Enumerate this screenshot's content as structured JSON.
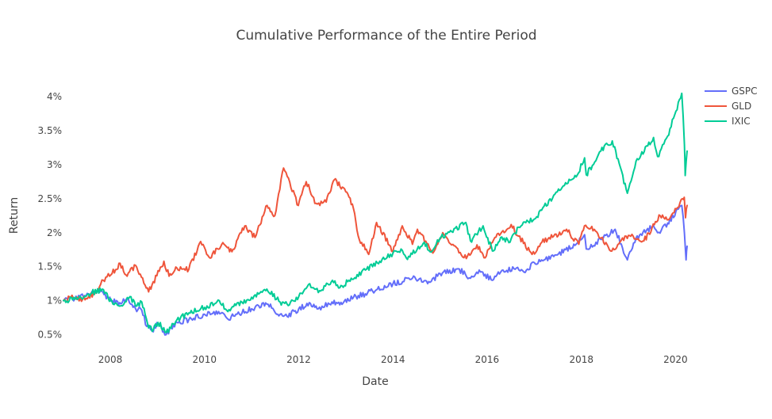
{
  "chart_data": {
    "type": "line",
    "title": "Cumulative Performance of the Entire Period",
    "xlabel": "Date",
    "ylabel": "Return",
    "xlim": [
      "2007-01-03",
      "2020-03-31"
    ],
    "ylim": [
      0.32,
      4.35
    ],
    "x_ticks": [
      "2008",
      "2010",
      "2012",
      "2014",
      "2016",
      "2018",
      "2020"
    ],
    "y_ticks": [
      {
        "value": 0.5,
        "label": "0.5%"
      },
      {
        "value": 1.0,
        "label": "1%"
      },
      {
        "value": 1.5,
        "label": "1.5%"
      },
      {
        "value": 2.0,
        "label": "2%"
      },
      {
        "value": 2.5,
        "label": "2.5%"
      },
      {
        "value": 3.0,
        "label": "3%"
      },
      {
        "value": 3.5,
        "label": "3.5%"
      },
      {
        "value": 4.0,
        "label": "4%"
      }
    ],
    "grid": false,
    "legend_position": "top-right",
    "series": [
      {
        "name": "GSPC",
        "color": "#636efa",
        "points": [
          [
            "2007-01-03",
            1.0
          ],
          [
            "2007-04-01",
            1.03
          ],
          [
            "2007-07-15",
            1.1
          ],
          [
            "2007-10-09",
            1.12
          ],
          [
            "2008-01-15",
            1.0
          ],
          [
            "2008-03-15",
            0.97
          ],
          [
            "2008-05-20",
            1.02
          ],
          [
            "2008-07-15",
            0.88
          ],
          [
            "2008-09-01",
            0.86
          ],
          [
            "2008-10-10",
            0.62
          ],
          [
            "2008-11-20",
            0.56
          ],
          [
            "2009-01-05",
            0.66
          ],
          [
            "2009-03-09",
            0.5
          ],
          [
            "2009-06-01",
            0.68
          ],
          [
            "2009-09-01",
            0.72
          ],
          [
            "2010-01-01",
            0.8
          ],
          [
            "2010-04-20",
            0.84
          ],
          [
            "2010-07-01",
            0.73
          ],
          [
            "2010-09-01",
            0.8
          ],
          [
            "2011-01-01",
            0.88
          ],
          [
            "2011-04-29",
            0.95
          ],
          [
            "2011-08-10",
            0.8
          ],
          [
            "2011-10-03",
            0.77
          ],
          [
            "2012-01-01",
            0.88
          ],
          [
            "2012-04-01",
            0.96
          ],
          [
            "2012-06-01",
            0.88
          ],
          [
            "2012-09-15",
            0.98
          ],
          [
            "2012-11-15",
            0.94
          ],
          [
            "2013-01-15",
            1.03
          ],
          [
            "2013-06-01",
            1.1
          ],
          [
            "2014-01-01",
            1.25
          ],
          [
            "2014-06-01",
            1.33
          ],
          [
            "2014-10-15",
            1.27
          ],
          [
            "2015-01-01",
            1.4
          ],
          [
            "2015-05-21",
            1.47
          ],
          [
            "2015-08-25",
            1.33
          ],
          [
            "2015-11-01",
            1.45
          ],
          [
            "2016-02-11",
            1.3
          ],
          [
            "2016-04-15",
            1.42
          ],
          [
            "2016-08-15",
            1.48
          ],
          [
            "2016-11-01",
            1.45
          ],
          [
            "2017-01-01",
            1.56
          ],
          [
            "2017-06-01",
            1.65
          ],
          [
            "2017-12-01",
            1.85
          ],
          [
            "2018-01-26",
            1.97
          ],
          [
            "2018-02-08",
            1.76
          ],
          [
            "2018-06-01",
            1.9
          ],
          [
            "2018-09-20",
            2.05
          ],
          [
            "2018-12-24",
            1.6
          ],
          [
            "2019-03-01",
            1.92
          ],
          [
            "2019-07-15",
            2.1
          ],
          [
            "2019-08-15",
            2.0
          ],
          [
            "2019-11-01",
            2.14
          ],
          [
            "2020-02-19",
            2.4
          ],
          [
            "2020-03-10",
            2.0
          ],
          [
            "2020-03-23",
            1.6
          ],
          [
            "2020-03-31",
            1.8
          ]
        ]
      },
      {
        "name": "GLD",
        "color": "#ef553b",
        "points": [
          [
            "2007-01-03",
            1.0
          ],
          [
            "2007-03-01",
            1.05
          ],
          [
            "2007-06-01",
            1.02
          ],
          [
            "2007-09-01",
            1.1
          ],
          [
            "2007-11-07",
            1.3
          ],
          [
            "2008-01-15",
            1.4
          ],
          [
            "2008-03-17",
            1.55
          ],
          [
            "2008-05-01",
            1.38
          ],
          [
            "2008-07-15",
            1.52
          ],
          [
            "2008-10-24",
            1.13
          ],
          [
            "2009-02-20",
            1.58
          ],
          [
            "2009-04-01",
            1.36
          ],
          [
            "2009-06-01",
            1.48
          ],
          [
            "2009-09-01",
            1.46
          ],
          [
            "2009-12-02",
            1.87
          ],
          [
            "2010-02-05",
            1.64
          ],
          [
            "2010-06-01",
            1.83
          ],
          [
            "2010-08-01",
            1.72
          ],
          [
            "2010-11-09",
            2.1
          ],
          [
            "2011-01-27",
            1.93
          ],
          [
            "2011-05-01",
            2.4
          ],
          [
            "2011-06-30",
            2.25
          ],
          [
            "2011-09-06",
            2.95
          ],
          [
            "2011-12-29",
            2.4
          ],
          [
            "2012-02-28",
            2.75
          ],
          [
            "2012-05-15",
            2.43
          ],
          [
            "2012-08-01",
            2.45
          ],
          [
            "2012-10-04",
            2.78
          ],
          [
            "2012-12-31",
            2.6
          ],
          [
            "2013-02-20",
            2.42
          ],
          [
            "2013-04-15",
            1.9
          ],
          [
            "2013-06-27",
            1.68
          ],
          [
            "2013-08-27",
            2.15
          ],
          [
            "2013-12-31",
            1.72
          ],
          [
            "2014-03-14",
            2.1
          ],
          [
            "2014-06-01",
            1.83
          ],
          [
            "2014-07-10",
            2.05
          ],
          [
            "2014-11-06",
            1.7
          ],
          [
            "2015-01-22",
            2.0
          ],
          [
            "2015-04-01",
            1.82
          ],
          [
            "2015-07-24",
            1.62
          ],
          [
            "2015-10-15",
            1.82
          ],
          [
            "2015-12-17",
            1.63
          ],
          [
            "2016-03-01",
            1.93
          ],
          [
            "2016-07-06",
            2.12
          ],
          [
            "2016-09-01",
            1.95
          ],
          [
            "2016-12-15",
            1.68
          ],
          [
            "2017-03-01",
            1.86
          ],
          [
            "2017-06-01",
            1.95
          ],
          [
            "2017-09-08",
            2.05
          ],
          [
            "2017-12-12",
            1.83
          ],
          [
            "2018-01-25",
            2.1
          ],
          [
            "2018-04-11",
            2.05
          ],
          [
            "2018-08-16",
            1.73
          ],
          [
            "2019-01-01",
            1.96
          ],
          [
            "2019-05-01",
            1.88
          ],
          [
            "2019-09-04",
            2.25
          ],
          [
            "2019-11-15",
            2.2
          ],
          [
            "2020-01-08",
            2.35
          ],
          [
            "2020-02-24",
            2.5
          ],
          [
            "2020-03-09",
            2.52
          ],
          [
            "2020-03-19",
            2.22
          ],
          [
            "2020-03-31",
            2.4
          ]
        ]
      },
      {
        "name": "IXIC",
        "color": "#00cc96",
        "points": [
          [
            "2007-01-03",
            1.0
          ],
          [
            "2007-04-01",
            1.02
          ],
          [
            "2007-07-15",
            1.1
          ],
          [
            "2007-10-31",
            1.17
          ],
          [
            "2008-01-22",
            0.95
          ],
          [
            "2008-03-15",
            0.92
          ],
          [
            "2008-06-01",
            1.06
          ],
          [
            "2008-07-15",
            0.92
          ],
          [
            "2008-09-01",
            0.98
          ],
          [
            "2008-10-15",
            0.67
          ],
          [
            "2008-11-20",
            0.55
          ],
          [
            "2009-01-05",
            0.68
          ],
          [
            "2009-03-09",
            0.53
          ],
          [
            "2009-06-01",
            0.72
          ],
          [
            "2009-09-01",
            0.82
          ],
          [
            "2010-01-01",
            0.9
          ],
          [
            "2010-04-26",
            1.0
          ],
          [
            "2010-07-01",
            0.84
          ],
          [
            "2010-09-01",
            0.93
          ],
          [
            "2011-01-01",
            1.05
          ],
          [
            "2011-04-29",
            1.17
          ],
          [
            "2011-08-10",
            0.98
          ],
          [
            "2011-10-03",
            0.95
          ],
          [
            "2012-01-01",
            1.06
          ],
          [
            "2012-03-27",
            1.25
          ],
          [
            "2012-06-01",
            1.12
          ],
          [
            "2012-09-19",
            1.3
          ],
          [
            "2012-11-15",
            1.19
          ],
          [
            "2013-01-15",
            1.28
          ],
          [
            "2013-06-01",
            1.45
          ],
          [
            "2014-01-01",
            1.7
          ],
          [
            "2014-03-05",
            1.76
          ],
          [
            "2014-04-14",
            1.63
          ],
          [
            "2014-09-01",
            1.86
          ],
          [
            "2014-10-15",
            1.72
          ],
          [
            "2015-01-01",
            1.92
          ],
          [
            "2015-07-20",
            2.15
          ],
          [
            "2015-08-25",
            1.88
          ],
          [
            "2015-12-01",
            2.1
          ],
          [
            "2016-02-11",
            1.73
          ],
          [
            "2016-04-15",
            1.93
          ],
          [
            "2016-06-27",
            1.86
          ],
          [
            "2016-09-01",
            2.08
          ],
          [
            "2017-01-01",
            2.2
          ],
          [
            "2017-06-01",
            2.55
          ],
          [
            "2017-12-01",
            2.85
          ],
          [
            "2018-01-26",
            3.1
          ],
          [
            "2018-02-08",
            2.85
          ],
          [
            "2018-06-01",
            3.2
          ],
          [
            "2018-08-29",
            3.35
          ],
          [
            "2018-12-24",
            2.58
          ],
          [
            "2019-03-01",
            3.05
          ],
          [
            "2019-07-15",
            3.4
          ],
          [
            "2019-08-15",
            3.12
          ],
          [
            "2019-11-01",
            3.42
          ],
          [
            "2020-02-19",
            4.05
          ],
          [
            "2020-03-10",
            3.3
          ],
          [
            "2020-03-16",
            2.84
          ],
          [
            "2020-03-31",
            3.2
          ]
        ]
      }
    ]
  }
}
